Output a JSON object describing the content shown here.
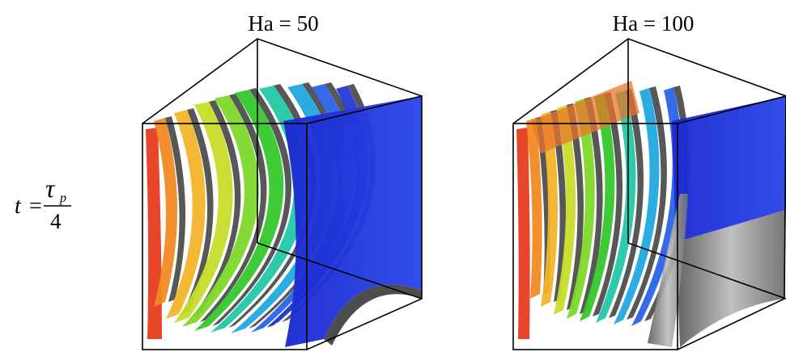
{
  "panels": [
    {
      "title": "Ha = 50"
    },
    {
      "title": "Ha = 100"
    }
  ],
  "time_label": {
    "lhs": "t",
    "equals": "=",
    "numerator_symbol": "τ",
    "numerator_subscript": "p",
    "denominator": "4"
  },
  "colors": {
    "shadow": "#3a3a3a",
    "surface_gray": "#8a8a8a",
    "blue_surface": "#1c2fd8",
    "sheet_palette": [
      "#e8462a",
      "#f08a22",
      "#f2b52a",
      "#c7dc2a",
      "#7fd82a",
      "#35c82a",
      "#22c8a6",
      "#22a8e0",
      "#2a62e8",
      "#2438d8"
    ]
  }
}
